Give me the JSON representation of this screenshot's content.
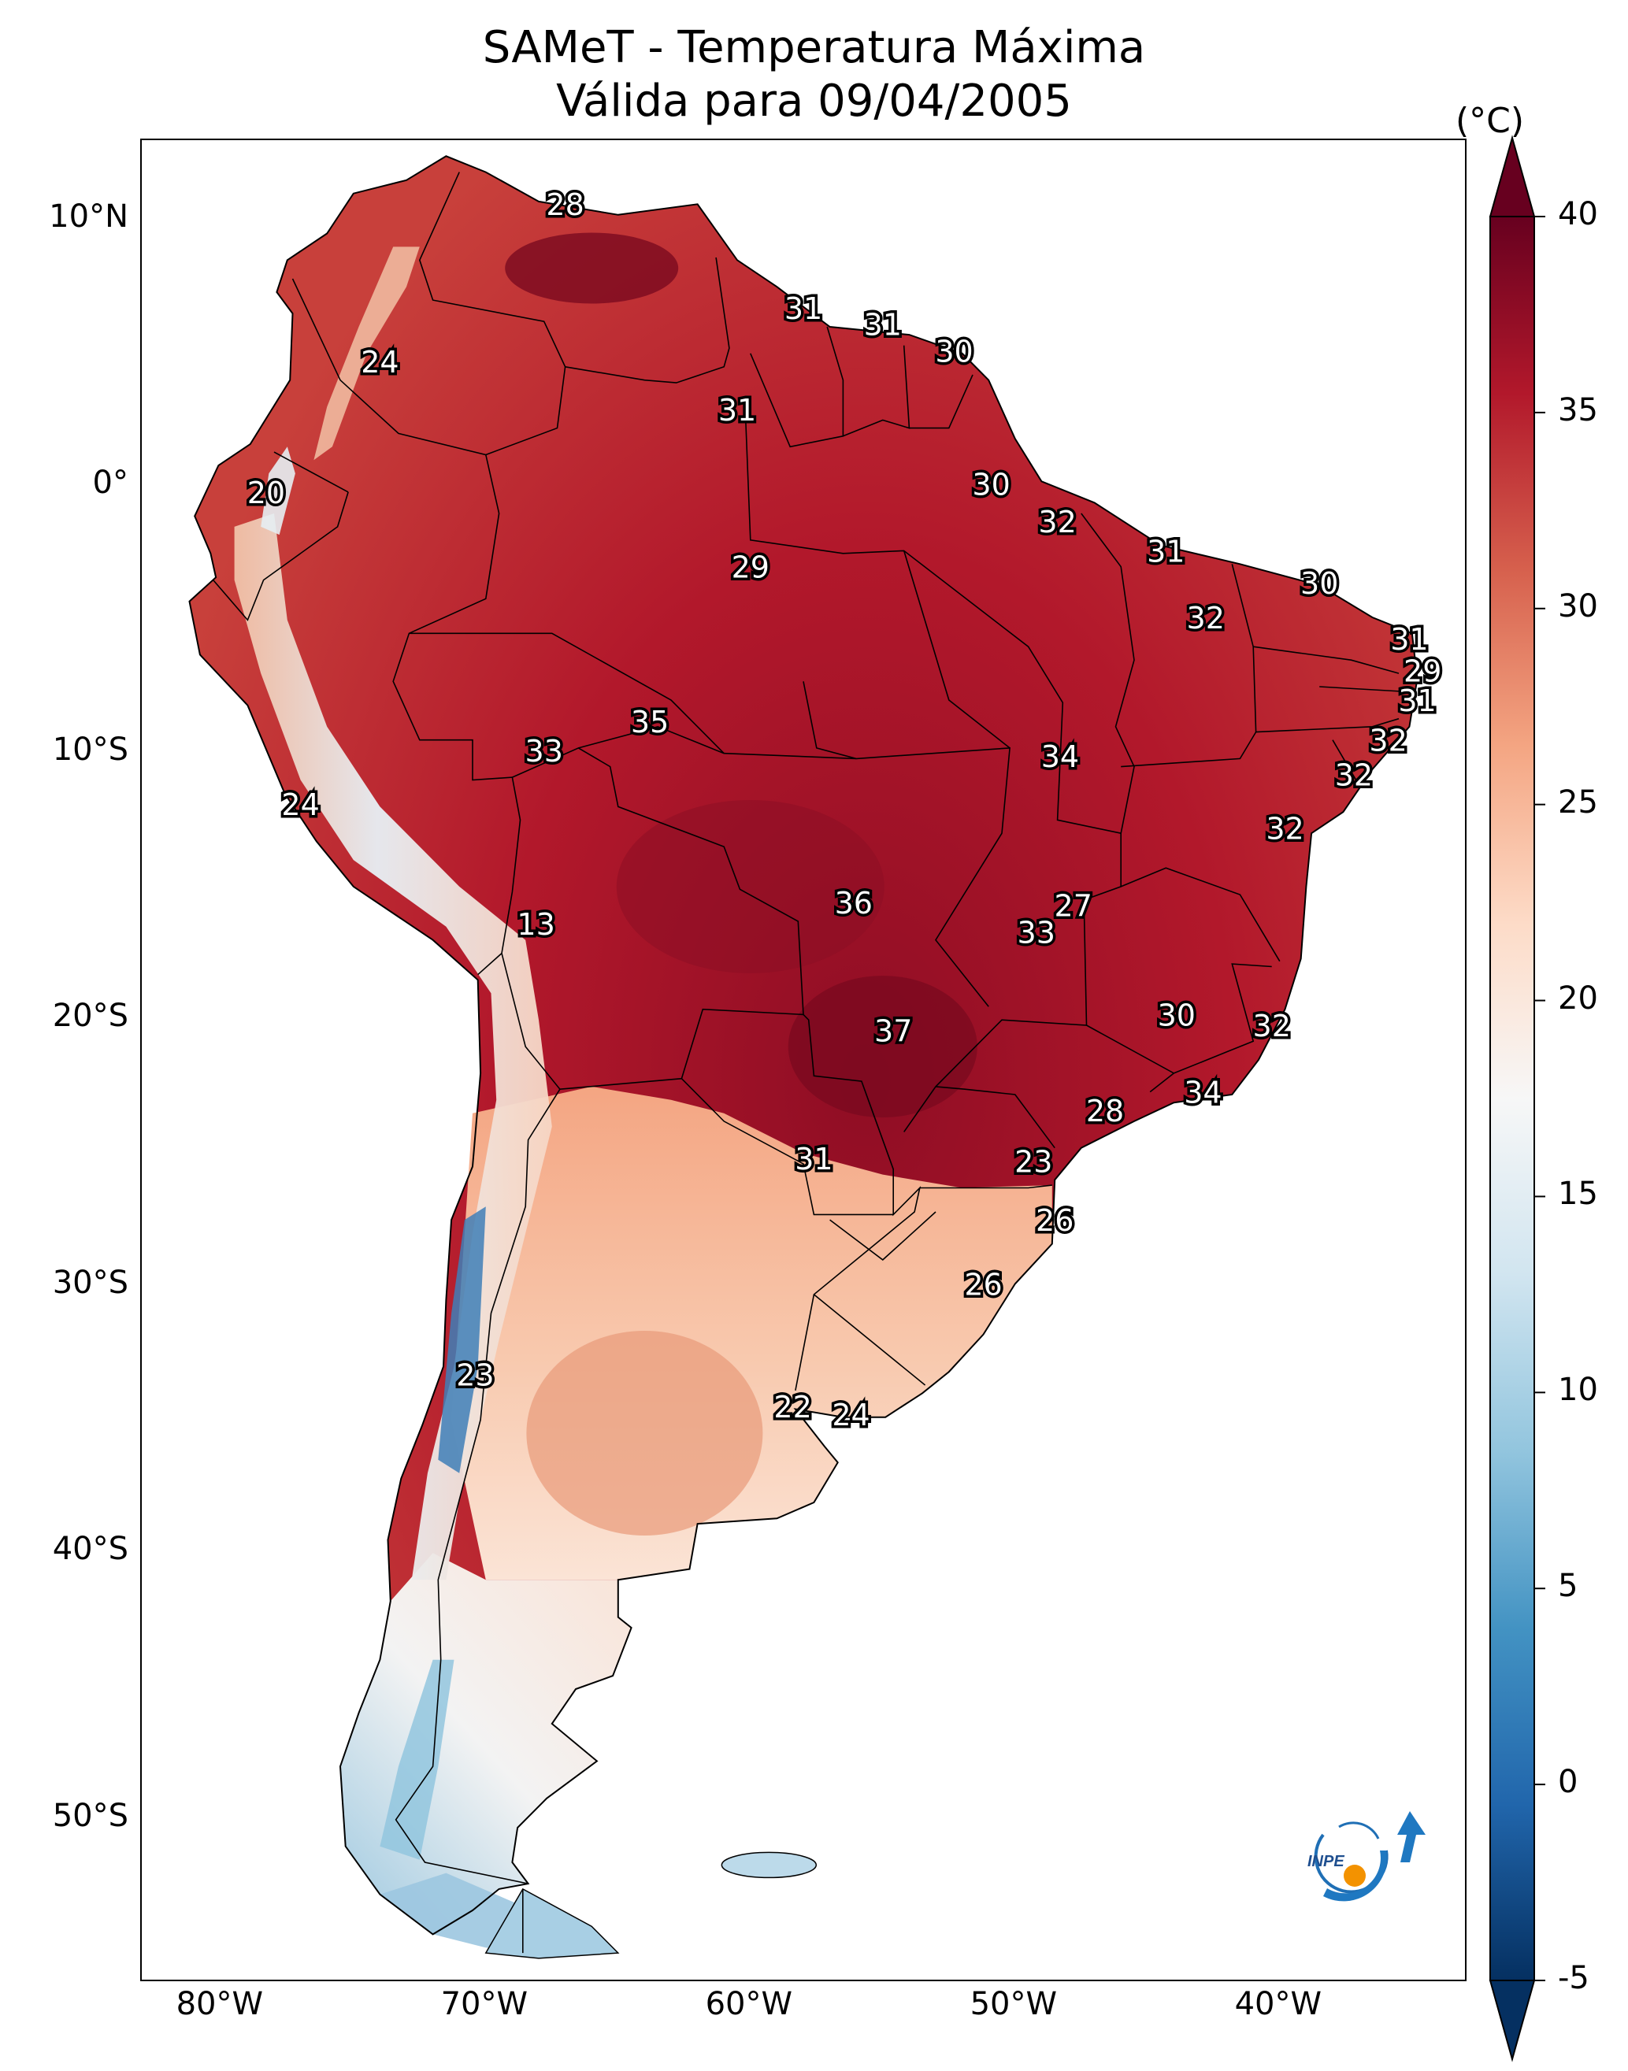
{
  "title": {
    "line1": "SAMeT - Temperatura Máxima",
    "line2": "Válida para 09/04/2005"
  },
  "map": {
    "region": "South America",
    "lon_range": [
      -83,
      -33
    ],
    "lat_range": [
      -56,
      13
    ],
    "lat_ticks": [
      "10°N",
      "0°",
      "10°S",
      "20°S",
      "30°S",
      "40°S",
      "50°S"
    ],
    "lat_tick_values": [
      10,
      0,
      -10,
      -20,
      -30,
      -40,
      -50
    ],
    "lon_ticks": [
      "80°W",
      "70°W",
      "60°W",
      "50°W",
      "40°W"
    ],
    "lon_tick_values": [
      -80,
      -70,
      -60,
      -50,
      -40
    ],
    "ocean_color": "#ffffff",
    "border_color": "#000000"
  },
  "colorbar": {
    "unit": "(°C)",
    "min": -5,
    "max": 40,
    "ticks": [
      "40",
      "35",
      "30",
      "25",
      "20",
      "15",
      "10",
      "5",
      "0",
      "-5"
    ],
    "tick_values": [
      40,
      35,
      30,
      25,
      20,
      15,
      10,
      5,
      0,
      -5
    ],
    "colormap": "RdBu_r",
    "stops": [
      "#053061",
      "#2166ac",
      "#4393c3",
      "#92c5de",
      "#d1e5f0",
      "#f7f7f7",
      "#fddbc7",
      "#f4a582",
      "#d6604d",
      "#b2182b",
      "#67001f"
    ]
  },
  "labels": [
    {
      "text": "28",
      "lon": -67.0,
      "lat": 10.5
    },
    {
      "text": "31",
      "lon": -58.0,
      "lat": 6.6
    },
    {
      "text": "31",
      "lon": -55.0,
      "lat": 6.0
    },
    {
      "text": "30",
      "lon": -52.3,
      "lat": 5.0
    },
    {
      "text": "24",
      "lon": -74.0,
      "lat": 4.6
    },
    {
      "text": "31",
      "lon": -60.5,
      "lat": 2.8
    },
    {
      "text": "20",
      "lon": -78.3,
      "lat": -0.3
    },
    {
      "text": "30",
      "lon": -50.9,
      "lat": 0.0
    },
    {
      "text": "32",
      "lon": -48.4,
      "lat": -1.4
    },
    {
      "text": "31",
      "lon": -44.3,
      "lat": -2.5
    },
    {
      "text": "29",
      "lon": -60.0,
      "lat": -3.1
    },
    {
      "text": "30",
      "lon": -38.5,
      "lat": -3.7
    },
    {
      "text": "32",
      "lon": -42.8,
      "lat": -5.0
    },
    {
      "text": "31",
      "lon": -35.1,
      "lat": -5.8
    },
    {
      "text": "29",
      "lon": -34.6,
      "lat": -7.0
    },
    {
      "text": "31",
      "lon": -34.8,
      "lat": -8.1
    },
    {
      "text": "35",
      "lon": -63.8,
      "lat": -8.9
    },
    {
      "text": "33",
      "lon": -67.8,
      "lat": -10.0
    },
    {
      "text": "32",
      "lon": -35.9,
      "lat": -9.6
    },
    {
      "text": "34",
      "lon": -48.3,
      "lat": -10.2
    },
    {
      "text": "32",
      "lon": -37.2,
      "lat": -10.9
    },
    {
      "text": "24",
      "lon": -77.0,
      "lat": -12.0
    },
    {
      "text": "32",
      "lon": -39.8,
      "lat": -12.9
    },
    {
      "text": "36",
      "lon": -56.1,
      "lat": -15.7
    },
    {
      "text": "27",
      "lon": -47.8,
      "lat": -15.8
    },
    {
      "text": "33",
      "lon": -49.2,
      "lat": -16.8
    },
    {
      "text": "13",
      "lon": -68.1,
      "lat": -16.5
    },
    {
      "text": "30",
      "lon": -43.9,
      "lat": -19.9
    },
    {
      "text": "37",
      "lon": -54.6,
      "lat": -20.5
    },
    {
      "text": "32",
      "lon": -40.3,
      "lat": -20.3
    },
    {
      "text": "34",
      "lon": -42.9,
      "lat": -22.8
    },
    {
      "text": "28",
      "lon": -46.6,
      "lat": -23.5
    },
    {
      "text": "31",
      "lon": -57.6,
      "lat": -25.3
    },
    {
      "text": "23",
      "lon": -49.3,
      "lat": -25.4
    },
    {
      "text": "26",
      "lon": -48.5,
      "lat": -27.6
    },
    {
      "text": "26",
      "lon": -51.2,
      "lat": -30.0
    },
    {
      "text": "23",
      "lon": -70.4,
      "lat": -33.4
    },
    {
      "text": "22",
      "lon": -58.4,
      "lat": -34.6
    },
    {
      "text": "24",
      "lon": -56.2,
      "lat": -34.9
    }
  ],
  "logo": {
    "text": "INPE"
  }
}
